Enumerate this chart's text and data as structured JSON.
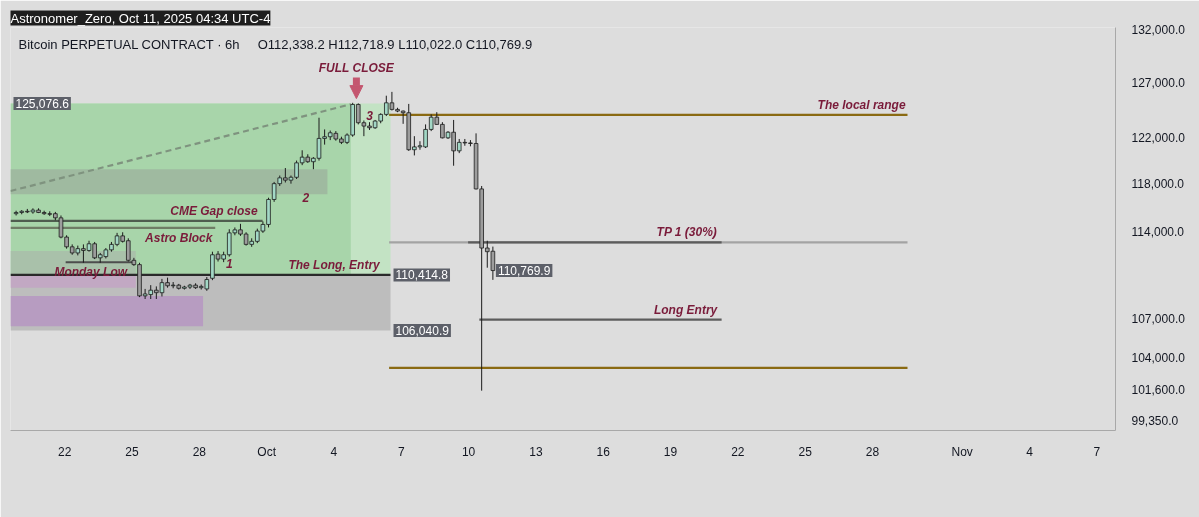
{
  "chart_data": {
    "type": "candlestick",
    "title": "Bitcoin PERPETUAL CONTRACT · 6h",
    "subtitle": "O112,338.2  H112,718.9  L110,022.0  C110,769.9",
    "log": "y",
    "grid": false,
    "xlim": [
      "2025-09-19T14:00",
      "2025-11-07T20:00"
    ],
    "xticks": [
      {
        "value": "2025-09-22",
        "label": "22"
      },
      {
        "value": "2025-09-25",
        "label": "25"
      },
      {
        "value": "2025-09-28",
        "label": "28"
      },
      {
        "value": "2025-10-01",
        "label": "Oct"
      },
      {
        "value": "2025-10-04",
        "label": "4"
      },
      {
        "value": "2025-10-07",
        "label": "7"
      },
      {
        "value": "2025-10-10",
        "label": "10"
      },
      {
        "value": "2025-10-13",
        "label": "13"
      },
      {
        "value": "2025-10-16",
        "label": "16"
      },
      {
        "value": "2025-10-19",
        "label": "19"
      },
      {
        "value": "2025-10-22",
        "label": "22"
      },
      {
        "value": "2025-10-25",
        "label": "25"
      },
      {
        "value": "2025-10-28",
        "label": "28"
      },
      {
        "value": "2025-11-01",
        "label": "Nov"
      },
      {
        "value": "2025-11-04",
        "label": "4"
      },
      {
        "value": "2025-11-07",
        "label": "7"
      }
    ],
    "ylim": [
      98600,
      132200
    ],
    "yticks": [
      {
        "value": 132000,
        "label": "132,000.0"
      },
      {
        "value": 127000,
        "label": "127,000.0"
      },
      {
        "value": 122000,
        "label": "122,000.0"
      },
      {
        "value": 118000,
        "label": "118,000.0"
      },
      {
        "value": 114000,
        "label": "114,000.0"
      },
      {
        "value": 107000,
        "label": "107,000.0"
      },
      {
        "value": 104000,
        "label": "104,000.0"
      },
      {
        "value": 101600,
        "label": "101,600.0"
      },
      {
        "value": 99350,
        "label": "99,350.0"
      }
    ],
    "x": [
      "2025-09-19T20:00",
      "2025-09-20T02:00",
      "2025-09-20T08:00",
      "2025-09-20T14:00",
      "2025-09-20T20:00",
      "2025-09-21T02:00",
      "2025-09-21T08:00",
      "2025-09-21T14:00",
      "2025-09-21T20:00",
      "2025-09-22T02:00",
      "2025-09-22T08:00",
      "2025-09-22T14:00",
      "2025-09-22T20:00",
      "2025-09-23T02:00",
      "2025-09-23T08:00",
      "2025-09-23T14:00",
      "2025-09-23T20:00",
      "2025-09-24T02:00",
      "2025-09-24T08:00",
      "2025-09-24T14:00",
      "2025-09-24T20:00",
      "2025-09-25T02:00",
      "2025-09-25T08:00",
      "2025-09-25T14:00",
      "2025-09-25T20:00",
      "2025-09-26T02:00",
      "2025-09-26T08:00",
      "2025-09-26T14:00",
      "2025-09-26T20:00",
      "2025-09-27T02:00",
      "2025-09-27T08:00",
      "2025-09-27T14:00",
      "2025-09-27T20:00",
      "2025-09-28T02:00",
      "2025-09-28T08:00",
      "2025-09-28T14:00",
      "2025-09-28T20:00",
      "2025-09-29T02:00",
      "2025-09-29T08:00",
      "2025-09-29T14:00",
      "2025-09-29T20:00",
      "2025-09-30T02:00",
      "2025-09-30T08:00",
      "2025-09-30T14:00",
      "2025-09-30T20:00",
      "2025-10-01T02:00",
      "2025-10-01T08:00",
      "2025-10-01T14:00",
      "2025-10-01T20:00",
      "2025-10-02T02:00",
      "2025-10-02T08:00",
      "2025-10-02T14:00",
      "2025-10-02T20:00",
      "2025-10-03T02:00",
      "2025-10-03T08:00",
      "2025-10-03T14:00",
      "2025-10-03T20:00",
      "2025-10-04T02:00",
      "2025-10-04T08:00",
      "2025-10-04T14:00",
      "2025-10-04T20:00",
      "2025-10-05T02:00",
      "2025-10-05T08:00",
      "2025-10-05T14:00",
      "2025-10-05T20:00",
      "2025-10-06T02:00",
      "2025-10-06T08:00",
      "2025-10-06T14:00",
      "2025-10-06T20:00",
      "2025-10-07T02:00",
      "2025-10-07T08:00",
      "2025-10-07T14:00",
      "2025-10-07T20:00",
      "2025-10-08T02:00",
      "2025-10-08T08:00",
      "2025-10-08T14:00",
      "2025-10-08T20:00",
      "2025-10-09T02:00",
      "2025-10-09T08:00",
      "2025-10-09T14:00",
      "2025-10-09T20:00",
      "2025-10-10T02:00",
      "2025-10-10T08:00",
      "2025-10-10T14:00",
      "2025-10-10T20:00",
      "2025-10-11T02:00"
    ],
    "ohlc": [
      [
        115450,
        115700,
        115300,
        115550
      ],
      [
        115550,
        115750,
        115400,
        115650
      ],
      [
        115650,
        115850,
        115500,
        115600
      ],
      [
        115600,
        115900,
        115450,
        115750
      ],
      [
        115750,
        115900,
        115500,
        115550
      ],
      [
        115550,
        115700,
        115350,
        115450
      ],
      [
        115450,
        115650,
        115250,
        115400
      ],
      [
        115450,
        115600,
        114900,
        115100
      ],
      [
        115100,
        115300,
        113400,
        113500
      ],
      [
        113500,
        113650,
        112550,
        112700
      ],
      [
        112700,
        112900,
        112050,
        112200
      ],
      [
        112200,
        112800,
        112000,
        112550
      ],
      [
        112550,
        112900,
        111400,
        112400
      ],
      [
        112400,
        113200,
        112300,
        112950
      ],
      [
        112950,
        113100,
        111700,
        111800
      ],
      [
        111800,
        112200,
        111400,
        112050
      ],
      [
        111900,
        112600,
        111750,
        112450
      ],
      [
        112450,
        113100,
        112300,
        112900
      ],
      [
        112900,
        113850,
        112750,
        113600
      ],
      [
        113600,
        113900,
        113050,
        113150
      ],
      [
        113200,
        113400,
        111500,
        111600
      ],
      [
        111600,
        111800,
        111150,
        111250
      ],
      [
        111250,
        111400,
        108650,
        108750
      ],
      [
        108750,
        109300,
        108500,
        108900
      ],
      [
        108850,
        109600,
        108500,
        109200
      ],
      [
        109200,
        109500,
        108500,
        109000
      ],
      [
        109000,
        110100,
        108700,
        109800
      ],
      [
        109800,
        110200,
        109400,
        109550
      ],
      [
        109550,
        109850,
        109350,
        109600
      ],
      [
        109600,
        109700,
        109250,
        109350
      ],
      [
        109350,
        109550,
        109250,
        109450
      ],
      [
        109450,
        109700,
        109300,
        109600
      ],
      [
        109600,
        109750,
        109300,
        109400
      ],
      [
        109400,
        109650,
        109250,
        109500
      ],
      [
        109300,
        110250,
        109150,
        110050
      ],
      [
        110150,
        112300,
        110000,
        112050
      ],
      [
        112100,
        112350,
        111500,
        111700
      ],
      [
        111700,
        112300,
        111450,
        112050
      ],
      [
        112050,
        114150,
        111900,
        113850
      ],
      [
        113850,
        114300,
        113650,
        114100
      ],
      [
        114100,
        114600,
        113600,
        113750
      ],
      [
        113750,
        113900,
        112800,
        112900
      ],
      [
        112900,
        113400,
        112700,
        113150
      ],
      [
        113150,
        114200,
        113000,
        114000
      ],
      [
        114000,
        114800,
        113850,
        114550
      ],
      [
        114550,
        116800,
        114300,
        116650
      ],
      [
        116650,
        118150,
        116450,
        118000
      ],
      [
        118000,
        118700,
        117800,
        118500
      ],
      [
        118500,
        119350,
        118100,
        118300
      ],
      [
        118300,
        118700,
        118000,
        118550
      ],
      [
        118550,
        120000,
        118400,
        119800
      ],
      [
        119800,
        120900,
        119600,
        120300
      ],
      [
        120300,
        120550,
        119800,
        119900
      ],
      [
        119900,
        120300,
        119250,
        120200
      ],
      [
        120200,
        123800,
        120000,
        121950
      ],
      [
        121950,
        122750,
        121400,
        122100
      ],
      [
        122100,
        122650,
        121800,
        122450
      ],
      [
        122400,
        122600,
        121750,
        121900
      ],
      [
        121900,
        122100,
        121450,
        121600
      ],
      [
        121600,
        122400,
        121450,
        122250
      ],
      [
        122250,
        125150,
        122100,
        125000
      ],
      [
        125000,
        125100,
        123200,
        123350
      ],
      [
        123350,
        123550,
        122150,
        123050
      ],
      [
        123050,
        123400,
        122700,
        122900
      ],
      [
        122900,
        123600,
        122800,
        123500
      ],
      [
        123500,
        124200,
        123300,
        124100
      ],
      [
        124100,
        125800,
        123950,
        125150
      ],
      [
        125150,
        126150,
        124450,
        124550
      ],
      [
        124550,
        124700,
        124300,
        124400
      ],
      [
        124400,
        124450,
        123250,
        124250
      ],
      [
        124250,
        125050,
        120850,
        120950
      ],
      [
        120950,
        122150,
        120450,
        121200
      ],
      [
        121200,
        121700,
        120950,
        121300
      ],
      [
        121200,
        123200,
        121100,
        122750
      ],
      [
        122750,
        124100,
        122600,
        123850
      ],
      [
        123850,
        124300,
        123150,
        123200
      ],
      [
        123200,
        123400,
        121950,
        122000
      ],
      [
        122000,
        122600,
        121900,
        122500
      ],
      [
        122500,
        123600,
        119550,
        120850
      ],
      [
        120850,
        121900,
        120650,
        121600
      ],
      [
        121600,
        121900,
        121300,
        121550
      ],
      [
        121550,
        121800,
        121250,
        121500
      ],
      [
        121500,
        122400,
        117500,
        117550
      ],
      [
        117550,
        117800,
        101500,
        112600
      ],
      [
        112600,
        113200,
        111000,
        112300
      ],
      [
        112338.2,
        112718.9,
        110022.0,
        110769.9
      ]
    ],
    "series": [
      {
        "type": "line",
        "x": [
          "2025-09-19T14:00",
          "2025-10-06T12:30"
        ],
        "values": [
          null,
          null
        ],
        "upper": [
          125076.6,
          125076.6
        ],
        "lower": [
          110414.8,
          110414.8
        ],
        "color": "#c3e3c4"
      },
      {
        "type": "line",
        "x": [
          "2025-09-19T14:00",
          "2025-10-04T18:00"
        ],
        "values": [
          null,
          null
        ],
        "upper": [
          125076.6,
          125076.6
        ],
        "lower": [
          110414.8,
          110414.8
        ],
        "color": "#a8d5aa"
      },
      {
        "type": "line",
        "x": [
          "2025-09-19T14:00",
          "2025-10-06T12:30"
        ],
        "values": [
          null,
          null
        ],
        "upper": [
          110414.8,
          110414.8
        ],
        "lower": [
          106040.9,
          106040.9
        ],
        "color": "#bdbdbd"
      },
      {
        "type": "line",
        "x": [
          "2025-09-19T14:00",
          "2025-10-03T17:00"
        ],
        "values": [
          null,
          null
        ],
        "upper": [
          119240,
          119240
        ],
        "lower": [
          117090,
          117090
        ],
        "color": "#9fbaa0"
      },
      {
        "type": "line",
        "x": [
          "2025-09-19T14:00",
          "2025-09-25T04:00"
        ],
        "values": [
          null,
          null
        ],
        "upper": [
          112350,
          112350
        ],
        "lower": [
          110414.8,
          110414.8
        ],
        "color": "#a9c1aa"
      },
      {
        "type": "line",
        "x": [
          "2025-09-19T14:00",
          "2025-09-25T04:00"
        ],
        "values": [
          null,
          null
        ],
        "upper": [
          110414.8,
          110414.8
        ],
        "lower": [
          109390,
          109390
        ],
        "color": "#c2a8c3"
      },
      {
        "type": "line",
        "x": [
          "2025-09-19T14:00",
          "2025-09-28T04:00"
        ],
        "values": [
          null,
          null
        ],
        "upper": [
          108730,
          108730
        ],
        "lower": [
          106380,
          106380
        ],
        "color": "#b79cc1"
      },
      {
        "type": "line",
        "x": [
          "2025-09-19T14:00",
          "2025-10-04T18:00"
        ],
        "values": [
          117370,
          125020
        ],
        "color": "#7f937f",
        "line_style": "dashed"
      },
      {
        "type": "line",
        "x": [
          "2025-09-19T14:00",
          "2025-10-06T12:30"
        ],
        "values": [
          110414.8,
          110414.8
        ],
        "color": "#2a2a2a"
      },
      {
        "type": "line",
        "x": [
          "2025-09-19T14:00",
          "2025-09-30T19:40"
        ],
        "values": [
          114840,
          114840
        ],
        "color": "#4f5d4f"
      },
      {
        "type": "line",
        "x": [
          "2025-09-19T14:00",
          "2025-09-28T17:00"
        ],
        "values": [
          114270,
          114270
        ],
        "color": "#6f7d66"
      },
      {
        "type": "line",
        "x": [
          "2025-09-22T01:00",
          "2025-09-25T00:00"
        ],
        "values": [
          111440,
          111440
        ],
        "color": "#4d4d4d"
      },
      {
        "type": "line",
        "x": [
          "2025-10-06T11:00",
          "2025-10-29T13:30"
        ],
        "values": [
          124060,
          124060
        ],
        "color": "#8a6a12"
      },
      {
        "type": "line",
        "x": [
          "2025-10-06T11:00",
          "2025-10-29T13:30"
        ],
        "values": [
          103200,
          103200
        ],
        "color": "#8a6a12"
      },
      {
        "type": "line",
        "x": [
          "2025-10-06T11:00",
          "2025-10-29T13:30"
        ],
        "values": [
          113060,
          113060
        ],
        "color": "#a3a3a3"
      },
      {
        "type": "line",
        "x": [
          "2025-10-09T23:30",
          "2025-10-21T06:40"
        ],
        "values": [
          113060,
          113060
        ],
        "color": "#5c5c5c"
      },
      {
        "type": "line",
        "x": [
          "2025-10-10T11:30",
          "2025-10-21T06:40"
        ],
        "values": [
          106880,
          106880
        ],
        "color": "#5c5c5c"
      }
    ],
    "annotations": [
      "Astronomer_Zero, Oct 11, 2025 04:34 UTC-4",
      {
        "text": "FULL CLOSE",
        "x": "2025-10-05T00:00",
        "y": 125076.6
      },
      {
        "text": "The local range",
        "x": "2025-10-29T11:30",
        "y": 124060
      },
      {
        "text": "TP 1 (30%)",
        "x": "2025-10-21T02:00",
        "y": 113060
      },
      {
        "text": "Long Entry",
        "x": "2025-10-21T02:00",
        "y": 106880
      },
      {
        "text": "The Long, Entry",
        "x": "2025-10-06T01:00",
        "y": 110414.8
      },
      {
        "text": "CME Gap close",
        "x": "2025-09-30T14:20",
        "y": 114840
      },
      {
        "text": "Astro Block",
        "x": "2025-09-28T14:00",
        "y": 114270
      },
      {
        "text": "Monday Low",
        "x": "2025-09-24T18:40",
        "y": 111440
      },
      {
        "text": "1",
        "x": "2025-09-29T08:00",
        "y": 111900
      },
      {
        "text": "2",
        "x": "2025-10-02T18:00",
        "y": 116780
      },
      {
        "text": "3",
        "x": "2025-10-05T14:00",
        "y": 123400
      },
      {
        "text": "125,076.6",
        "x": "2025-09-19T14:00",
        "y": 125076.6
      },
      {
        "text": "110,769.9",
        "x": "2025-10-11T02:00",
        "y": 110769.9
      },
      {
        "text": "110,414.8",
        "x": "2025-10-06T12:30",
        "y": 110414.8
      },
      {
        "text": "106,040.9",
        "x": "2025-10-06T12:30",
        "y": 106040.9
      }
    ]
  }
}
